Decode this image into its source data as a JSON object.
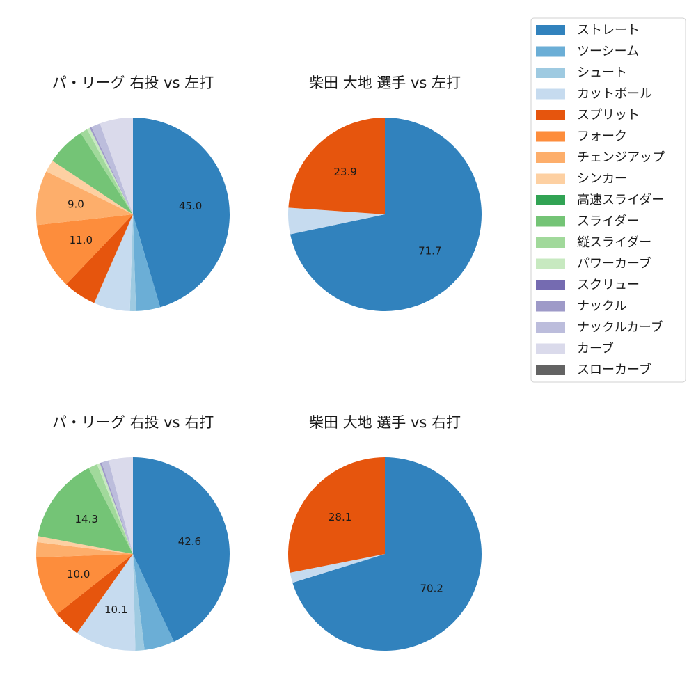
{
  "chart_data": [
    {
      "type": "pie",
      "title": "パ・リーグ 右投 vs 左打",
      "slices": [
        {
          "label": "ストレート",
          "value": 45.0,
          "show_label": true
        },
        {
          "label": "ツーシーム",
          "value": 4.0
        },
        {
          "label": "シュート",
          "value": 1.0
        },
        {
          "label": "カットボール",
          "value": 6.0
        },
        {
          "label": "スプリット",
          "value": 5.5
        },
        {
          "label": "フォーク",
          "value": 11.0,
          "show_label": true
        },
        {
          "label": "チェンジアップ",
          "value": 9.0,
          "show_label": true
        },
        {
          "label": "シンカー",
          "value": 2.0
        },
        {
          "label": "高速スライダー",
          "value": 0.0
        },
        {
          "label": "スライダー",
          "value": 6.5
        },
        {
          "label": "縦スライダー",
          "value": 1.2
        },
        {
          "label": "パワーカーブ",
          "value": 0.5
        },
        {
          "label": "スクリュー",
          "value": 0.0
        },
        {
          "label": "ナックル",
          "value": 0.3
        },
        {
          "label": "ナックルカーブ",
          "value": 1.5
        },
        {
          "label": "カーブ",
          "value": 5.5
        },
        {
          "label": "スローカーブ",
          "value": 0.0
        }
      ]
    },
    {
      "type": "pie",
      "title": "柴田 大地 選手 vs 左打",
      "slices": [
        {
          "label": "ストレート",
          "value": 71.7,
          "show_label": true
        },
        {
          "label": "カットボール",
          "value": 4.4
        },
        {
          "label": "スプリット",
          "value": 23.9,
          "show_label": true
        }
      ]
    },
    {
      "type": "pie",
      "title": "パ・リーグ 右投 vs 右打",
      "slices": [
        {
          "label": "ストレート",
          "value": 42.6,
          "show_label": true
        },
        {
          "label": "ツーシーム",
          "value": 5.0
        },
        {
          "label": "シュート",
          "value": 1.5
        },
        {
          "label": "カットボール",
          "value": 10.1,
          "show_label": true
        },
        {
          "label": "スプリット",
          "value": 4.5
        },
        {
          "label": "フォーク",
          "value": 10.0,
          "show_label": true
        },
        {
          "label": "チェンジアップ",
          "value": 2.5
        },
        {
          "label": "シンカー",
          "value": 1.0
        },
        {
          "label": "高速スライダー",
          "value": 0.0
        },
        {
          "label": "スライダー",
          "value": 14.3,
          "show_label": true
        },
        {
          "label": "縦スライダー",
          "value": 1.5
        },
        {
          "label": "パワーカーブ",
          "value": 0.5
        },
        {
          "label": "スクリュー",
          "value": 0.0
        },
        {
          "label": "ナックル",
          "value": 0.3
        },
        {
          "label": "ナックルカーブ",
          "value": 1.2
        },
        {
          "label": "カーブ",
          "value": 4.0
        },
        {
          "label": "スローカーブ",
          "value": 0.0
        }
      ]
    },
    {
      "type": "pie",
      "title": "柴田 大地 選手 vs 右打",
      "slices": [
        {
          "label": "ストレート",
          "value": 70.2,
          "show_label": true
        },
        {
          "label": "カットボール",
          "value": 1.7
        },
        {
          "label": "スプリット",
          "value": 28.1,
          "show_label": true
        }
      ]
    }
  ],
  "legend": {
    "placement": "top-right",
    "items": [
      {
        "label": "ストレート",
        "color": "#3182bd"
      },
      {
        "label": "ツーシーム",
        "color": "#6baed6"
      },
      {
        "label": "シュート",
        "color": "#9ecae1"
      },
      {
        "label": "カットボール",
        "color": "#c6dbef"
      },
      {
        "label": "スプリット",
        "color": "#e6550d"
      },
      {
        "label": "フォーク",
        "color": "#fd8d3c"
      },
      {
        "label": "チェンジアップ",
        "color": "#fdae6b"
      },
      {
        "label": "シンカー",
        "color": "#fdd0a2"
      },
      {
        "label": "高速スライダー",
        "color": "#31a354"
      },
      {
        "label": "スライダー",
        "color": "#74c476"
      },
      {
        "label": "縦スライダー",
        "color": "#a1d99b"
      },
      {
        "label": "パワーカーブ",
        "color": "#c7e9c0"
      },
      {
        "label": "スクリュー",
        "color": "#756bb1"
      },
      {
        "label": "ナックル",
        "color": "#9e9ac8"
      },
      {
        "label": "ナックルカーブ",
        "color": "#bcbddc"
      },
      {
        "label": "カーブ",
        "color": "#dadaeb"
      },
      {
        "label": "スローカーブ",
        "color": "#636363"
      }
    ]
  }
}
